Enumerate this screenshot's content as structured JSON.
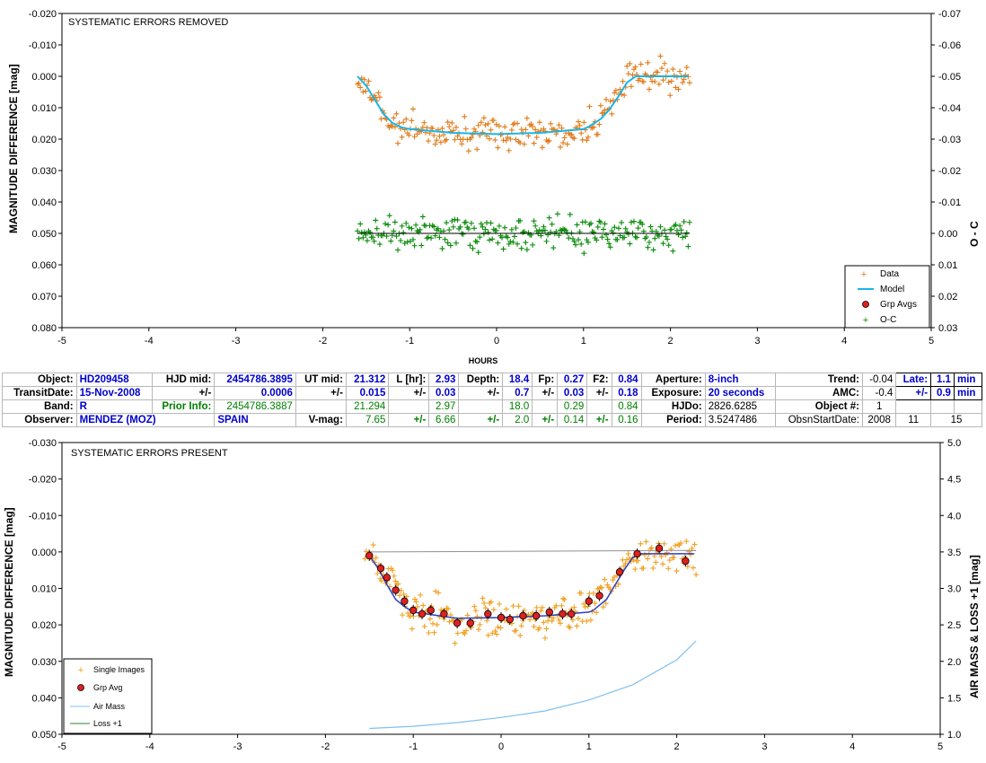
{
  "top_chart": {
    "note": "SYSTEMATIC ERRORS REMOVED",
    "ylabel": "MAGNITUDE DIFFERENCE [mag]",
    "y2label": "O - C",
    "xlabel": "HOURS",
    "xticks": [
      "-5",
      "-4",
      "-3",
      "-2",
      "-1",
      "0",
      "1",
      "2",
      "3",
      "4",
      "5"
    ],
    "yticks": [
      "-0.020",
      "-0.010",
      "0.000",
      "0.010",
      "0.020",
      "0.030",
      "0.040",
      "0.050",
      "0.060",
      "0.070",
      "0.080"
    ],
    "y2ticks": [
      "-0.07",
      "-0.06",
      "-0.05",
      "-0.04",
      "-0.03",
      "-0.02",
      "-0.01",
      "0.00",
      "0.01",
      "0.02",
      "0.03"
    ],
    "legend": [
      "Data",
      "Model",
      "Grp Avgs",
      "O-C"
    ]
  },
  "info": {
    "r1": {
      "object_lbl": "Object:",
      "object": "HD209458",
      "hjd_lbl": "HJD mid:",
      "hjd": "2454786.3895",
      "ut_lbl": "UT mid:",
      "ut": "21.312",
      "l_lbl": "L [hr]:",
      "l": "2.93",
      "depth_lbl": "Depth:",
      "depth": "18.4",
      "fp_lbl": "Fp:",
      "fp": "0.27",
      "f2_lbl": "F2:",
      "f2": "0.84",
      "ap_lbl": "Aperture:",
      "ap": "8-inch",
      "trend_lbl": "Trend:",
      "trend": "-0.04",
      "late_lbl": "Late:",
      "late": "1.1",
      "late_u": "min"
    },
    "r2": {
      "td_lbl": "TransitDate:",
      "td": "15-Nov-2008",
      "pm": "+/-",
      "hjd_e": "0.0006",
      "ut_e": "0.015",
      "l_e": "0.03",
      "depth_e": "0.7",
      "fp_e": "0.03",
      "f2_e": "0.18",
      "exp_lbl": "Exposure:",
      "exp": "20 seconds",
      "amc_lbl": "AMC:",
      "amc": "-0.4",
      "late_e": "0.9",
      "late_u": "min"
    },
    "r3": {
      "band_lbl": "Band:",
      "band": "R",
      "prior_lbl": "Prior Info:",
      "prior_hjd": "2454786.3887",
      "prior_ut": "21.294",
      "prior_l": "2.97",
      "prior_depth": "18.0",
      "prior_fp": "0.29",
      "prior_f2": "0.84",
      "hjdo_lbl": "HJDo:",
      "hjdo": "2826.6285",
      "objn_lbl": "Object #:",
      "objn": "1"
    },
    "r4": {
      "obs_lbl": "Observer:",
      "obs": "MENDEZ (MOZ)",
      "country": "SPAIN",
      "vmag_lbl": "V-mag:",
      "vmag": "7.65",
      "pm": "+/-",
      "v1": "6.66",
      "v2": "2.0",
      "v3": "0.14",
      "v4": "0.16",
      "period_lbl": "Period:",
      "period": "3.5247486",
      "osd_lbl": "ObsnStartDate:",
      "y": "2008",
      "m": "11",
      "d": "15"
    }
  },
  "bottom_chart": {
    "note": "SYSTEMATIC ERRORS PRESENT",
    "ylabel": "MAGNITUDE DIFFERENCE [mag]",
    "y2label": "AIR MASS & LOSS +1 [mag]",
    "xticks": [
      "-5",
      "-4",
      "-3",
      "-2",
      "-1",
      "0",
      "1",
      "2",
      "3",
      "4",
      "5"
    ],
    "yticks": [
      "-0.030",
      "-0.020",
      "-0.010",
      "0.000",
      "0.010",
      "0.020",
      "0.030",
      "0.040",
      "0.050"
    ],
    "y2ticks": [
      "5.0",
      "4.5",
      "4.0",
      "3.5",
      "3.0",
      "2.5",
      "2.0",
      "1.5",
      "1.0"
    ],
    "legend": [
      "Single Images",
      "Grp Avg",
      "Air Mass",
      "Loss +1"
    ]
  },
  "chart_data": [
    {
      "type": "scatter",
      "title": "SYSTEMATIC ERRORS REMOVED",
      "xlabel": "HOURS",
      "ylabel": "MAGNITUDE DIFFERENCE [mag]",
      "y2label": "O - C",
      "xlim": [
        -5,
        5
      ],
      "ylim": [
        -0.02,
        0.08
      ],
      "y2lim": [
        -0.07,
        0.03
      ],
      "y_inverted": true,
      "grid": false,
      "legend_position": "bottom-right",
      "colors": {
        "data": "#e07b1a",
        "model": "#19b5e6",
        "oc": "#0a8a0a",
        "oc_line": "#000000"
      },
      "model": {
        "x": [
          -1.6,
          -1.5,
          -1.4,
          -1.3,
          -1.2,
          -1.1,
          -1.0,
          -0.5,
          0.0,
          0.5,
          1.0,
          1.05,
          1.2,
          1.3,
          1.4,
          1.5,
          1.6,
          2.2
        ],
        "y": [
          0.0,
          0.003,
          0.0075,
          0.012,
          0.0148,
          0.0162,
          0.0168,
          0.018,
          0.0184,
          0.018,
          0.0168,
          0.0162,
          0.0135,
          0.0105,
          0.0065,
          0.002,
          0.0,
          0.0
        ]
      },
      "series": [
        {
          "name": "Data",
          "type": "scatter",
          "x_range": [
            -1.6,
            2.22
          ],
          "n": 240,
          "note": "follows model with noise ~0.0025"
        },
        {
          "name": "O-C",
          "type": "scatter",
          "x_range": [
            -1.6,
            2.22
          ],
          "n": 240,
          "y_center": 0.0,
          "noise": 0.0025
        }
      ]
    },
    {
      "type": "scatter",
      "title": "SYSTEMATIC ERRORS PRESENT",
      "xlabel": "",
      "ylabel": "MAGNITUDE DIFFERENCE [mag]",
      "y2label": "AIR MASS & LOSS +1 [mag]",
      "xlim": [
        -5,
        5
      ],
      "ylim": [
        -0.03,
        0.05
      ],
      "y2lim": [
        1.0,
        5.0
      ],
      "y_inverted": true,
      "grid": false,
      "legend_position": "bottom-left",
      "colors": {
        "single": "#f0a020",
        "grp": "#e02020",
        "model": "#2a40c8",
        "airmass": "#7fc0f0",
        "loss": "#2a8a2a"
      },
      "series": [
        {
          "name": "Grp Avg",
          "x": [
            -1.5,
            -1.37,
            -1.3,
            -1.2,
            -1.1,
            -1.0,
            -0.9,
            -0.8,
            -0.65,
            -0.5,
            -0.35,
            -0.15,
            0.0,
            0.1,
            0.25,
            0.4,
            0.55,
            0.7,
            0.8,
            1.0,
            1.12,
            1.35,
            1.55,
            1.8,
            2.1
          ],
          "y": [
            0.001,
            0.0045,
            0.007,
            0.0105,
            0.0135,
            0.016,
            0.017,
            0.016,
            0.017,
            0.0195,
            0.0195,
            0.017,
            0.018,
            0.0185,
            0.0175,
            0.0175,
            0.0165,
            0.017,
            0.017,
            0.0135,
            0.012,
            0.0055,
            0.0005,
            -0.001,
            0.0025
          ]
        },
        {
          "name": "Air Mass",
          "x": [
            -1.5,
            -1.0,
            -0.5,
            0.0,
            0.5,
            1.0,
            1.5,
            2.0,
            2.22
          ],
          "y": [
            1.08,
            1.11,
            1.16,
            1.23,
            1.32,
            1.47,
            1.68,
            2.02,
            2.28
          ]
        },
        {
          "name": "Loss +1",
          "x": [
            -1.5,
            2.22
          ],
          "y": [
            3.5,
            3.52
          ]
        }
      ]
    }
  ]
}
